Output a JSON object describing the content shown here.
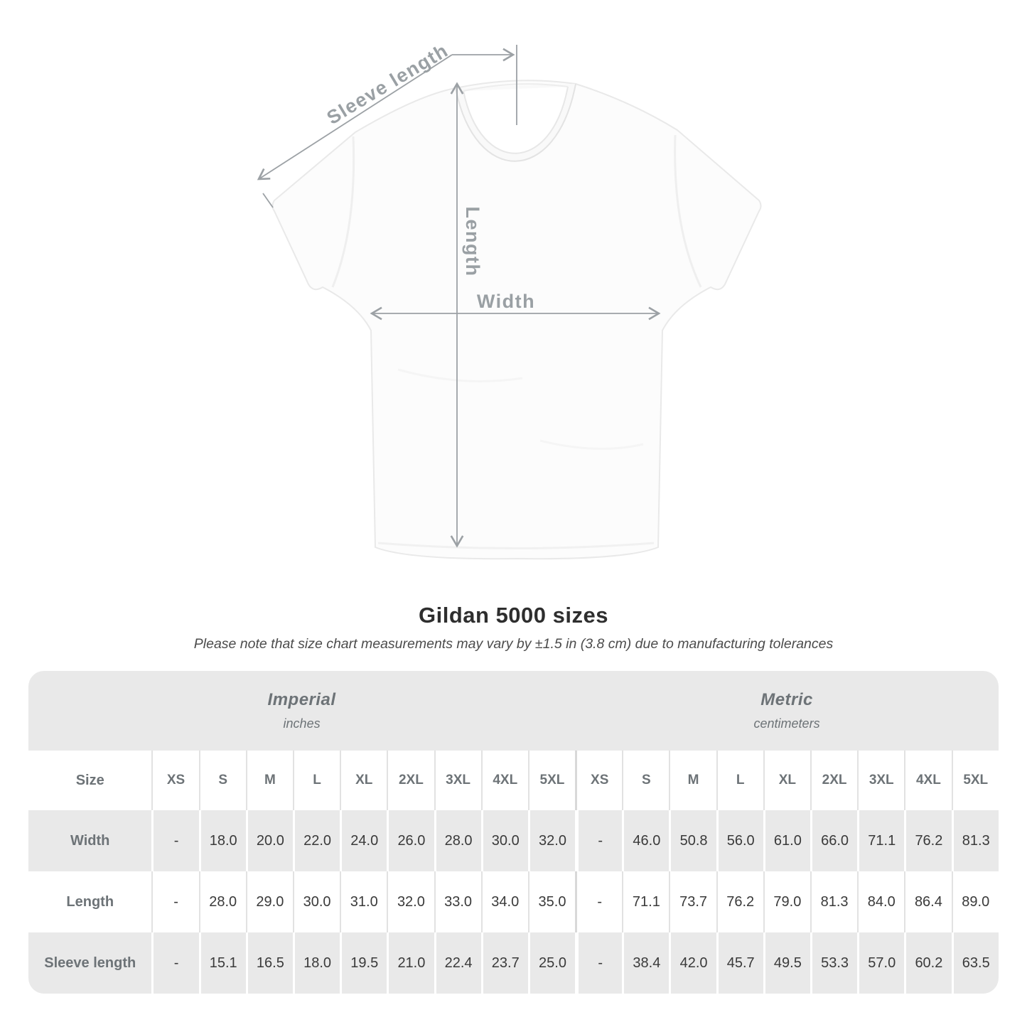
{
  "diagram": {
    "labels": {
      "sleeve_length": "Sleeve length",
      "length": "Length",
      "width": "Width"
    },
    "annotation_color": "#9ca1a5"
  },
  "caption": {
    "title": "Gildan 5000 sizes",
    "subtitle": "Please note that size chart measurements may vary by ±1.5 in (3.8 cm) due to manufacturing tolerances"
  },
  "table": {
    "section_headers": [
      {
        "label": "Imperial",
        "sublabel": "inches"
      },
      {
        "label": "Metric",
        "sublabel": "centimeters"
      }
    ],
    "size_header": {
      "label": "Size",
      "imperial": [
        "XS",
        "S",
        "M",
        "L",
        "XL",
        "2XL",
        "3XL",
        "4XL",
        "5XL"
      ],
      "metric": [
        "XS",
        "S",
        "M",
        "L",
        "XL",
        "2XL",
        "3XL",
        "4XL",
        "5XL"
      ]
    },
    "rows": [
      {
        "label": "Width",
        "imperial": [
          "-",
          "18.0",
          "20.0",
          "22.0",
          "24.0",
          "26.0",
          "28.0",
          "30.0",
          "32.0"
        ],
        "metric": [
          "-",
          "46.0",
          "50.8",
          "56.0",
          "61.0",
          "66.0",
          "71.1",
          "76.2",
          "81.3"
        ]
      },
      {
        "label": "Length",
        "imperial": [
          "-",
          "28.0",
          "29.0",
          "30.0",
          "31.0",
          "32.0",
          "33.0",
          "34.0",
          "35.0"
        ],
        "metric": [
          "-",
          "71.1",
          "73.7",
          "76.2",
          "79.0",
          "81.3",
          "84.0",
          "86.4",
          "89.0"
        ]
      },
      {
        "label": "Sleeve length",
        "imperial": [
          "-",
          "15.1",
          "16.5",
          "18.0",
          "19.5",
          "21.0",
          "22.4",
          "23.7",
          "25.0"
        ],
        "metric": [
          "-",
          "38.4",
          "42.0",
          "45.7",
          "49.5",
          "53.3",
          "57.0",
          "60.2",
          "63.5"
        ]
      }
    ],
    "colors": {
      "band": "#e9e9e9",
      "alt_row": "#e9e9e9"
    }
  },
  "chart_data": {
    "type": "table",
    "title": "Gildan 5000 sizes",
    "note": "Please note that size chart measurements may vary by ±1.5 in (3.8 cm) due to manufacturing tolerances",
    "column_groups": [
      {
        "label": "Imperial",
        "unit": "inches",
        "sizes": [
          "XS",
          "S",
          "M",
          "L",
          "XL",
          "2XL",
          "3XL",
          "4XL",
          "5XL"
        ]
      },
      {
        "label": "Metric",
        "unit": "centimeters",
        "sizes": [
          "XS",
          "S",
          "M",
          "L",
          "XL",
          "2XL",
          "3XL",
          "4XL",
          "5XL"
        ]
      }
    ],
    "rows": [
      {
        "measurement": "Width",
        "imperial": [
          null,
          18.0,
          20.0,
          22.0,
          24.0,
          26.0,
          28.0,
          30.0,
          32.0
        ],
        "metric": [
          null,
          46.0,
          50.8,
          56.0,
          61.0,
          66.0,
          71.1,
          76.2,
          81.3
        ]
      },
      {
        "measurement": "Length",
        "imperial": [
          null,
          28.0,
          29.0,
          30.0,
          31.0,
          32.0,
          33.0,
          34.0,
          35.0
        ],
        "metric": [
          null,
          71.1,
          73.7,
          76.2,
          79.0,
          81.3,
          84.0,
          86.4,
          89.0
        ]
      },
      {
        "measurement": "Sleeve length",
        "imperial": [
          null,
          15.1,
          16.5,
          18.0,
          19.5,
          21.0,
          22.4,
          23.7,
          25.0
        ],
        "metric": [
          null,
          38.4,
          42.0,
          45.7,
          49.5,
          53.3,
          57.0,
          60.2,
          63.5
        ]
      }
    ]
  }
}
